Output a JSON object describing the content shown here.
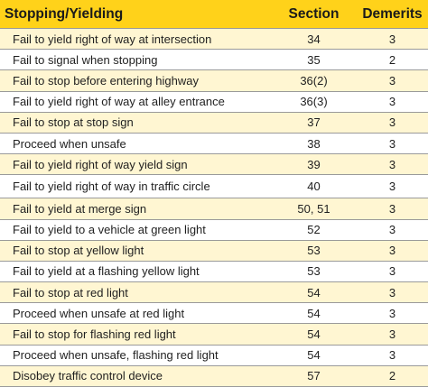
{
  "header": {
    "description": "Stopping/Yielding",
    "section": "Section",
    "demerits": "Demerits"
  },
  "rows": [
    {
      "description": "Fail to yield right of way at intersection",
      "section": "34",
      "demerits": "3"
    },
    {
      "description": "Fail to signal when stopping",
      "section": "35",
      "demerits": "2"
    },
    {
      "description": "Fail to stop before entering highway",
      "section": "36(2)",
      "demerits": "3"
    },
    {
      "description": "Fail to yield right of way at alley entrance",
      "section": "36(3)",
      "demerits": "3"
    },
    {
      "description": "Fail to stop at stop sign",
      "section": "37",
      "demerits": "3"
    },
    {
      "description": "Proceed when unsafe",
      "section": "38",
      "demerits": "3"
    },
    {
      "description": "Fail to yield right of way yield sign",
      "section": "39",
      "demerits": "3"
    },
    {
      "description": "Fail to yield right of way in traffic circle",
      "section": "40",
      "demerits": "3"
    },
    {
      "description": "Fail to yield at merge sign",
      "section": "50, 51",
      "demerits": "3"
    },
    {
      "description": "Fail to yield to a vehicle at green light",
      "section": "52",
      "demerits": "3"
    },
    {
      "description": "Fail to stop at yellow light",
      "section": "53",
      "demerits": "3"
    },
    {
      "description": "Fail to yield at a flashing yellow light",
      "section": "53",
      "demerits": "3"
    },
    {
      "description": "Fail to stop at red light",
      "section": "54",
      "demerits": "3"
    },
    {
      "description": "Proceed when unsafe at red light",
      "section": "54",
      "demerits": "3"
    },
    {
      "description": "Fail to stop for flashing red light",
      "section": "54",
      "demerits": "3"
    },
    {
      "description": "Proceed when unsafe, flashing red light",
      "section": "54",
      "demerits": "3"
    },
    {
      "description": "Disobey traffic control device",
      "section": "57",
      "demerits": "2"
    }
  ],
  "colors": {
    "header_bg": "#ffd21a",
    "alt_row_bg": "#fff6d2",
    "row_bg": "#ffffff",
    "rule": "#9a9a9a"
  }
}
